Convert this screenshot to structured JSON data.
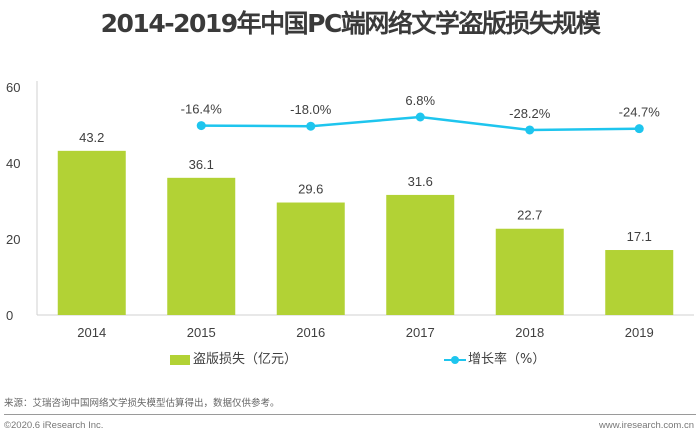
{
  "title": "2014-2019年中国PC端网络文学盗版损失规模",
  "chart_data": {
    "type": "bar+line",
    "title": "2014-2019年中国PC端网络文学盗版损失规模",
    "categories": [
      "2014",
      "2015",
      "2016",
      "2017",
      "2018",
      "2019"
    ],
    "series": [
      {
        "name": "盗版损失（亿元）",
        "type": "bar",
        "axis": "primary",
        "color": "#b2d235",
        "values": [
          43.2,
          36.1,
          29.6,
          31.6,
          22.7,
          17.1
        ],
        "labels": [
          "43.2",
          "36.1",
          "29.6",
          "31.6",
          "22.7",
          "17.1"
        ]
      },
      {
        "name": "增长率（%）",
        "type": "line",
        "axis": "secondary",
        "color": "#1ec5ee",
        "values": [
          null,
          -16.4,
          -18.0,
          6.8,
          -28.2,
          -24.7
        ],
        "labels": [
          "",
          "-16.4%",
          "-18.0%",
          "6.8%",
          "-28.2%",
          "-24.7%"
        ]
      }
    ],
    "yaxis": {
      "min": 0,
      "max": 60,
      "ticks": [
        "0",
        "20",
        "40",
        "60"
      ]
    },
    "y2axis_hidden": true,
    "legend": {
      "position": "bottom",
      "items": [
        "盗版损失（亿元）",
        "增长率（%）"
      ]
    },
    "grid": false
  },
  "footer": {
    "source": "来源：艾瑞咨询中国网络文学损失模型估算得出，数据仅供参考。",
    "copyright": "©2020.6 iResearch Inc.",
    "website": "www.iresearch.com.cn"
  }
}
